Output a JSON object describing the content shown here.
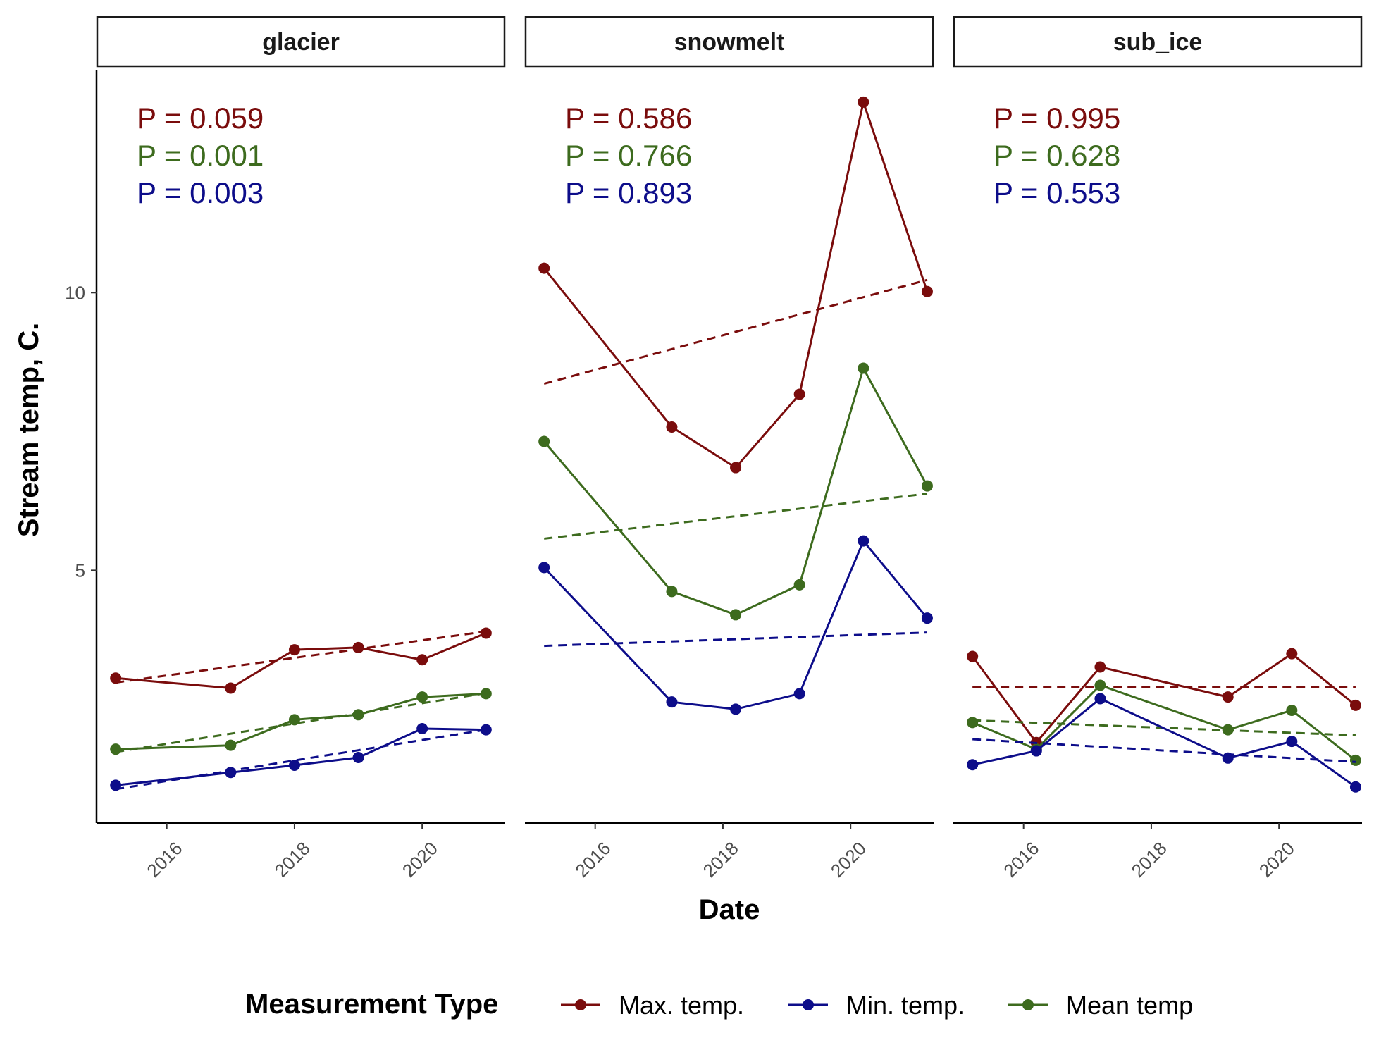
{
  "chart_data": {
    "type": "line",
    "ylabel": "Stream temp, C.",
    "xlabel": "Date",
    "legend": {
      "title": "Measurement Type",
      "placement": "bottom",
      "items": [
        {
          "key": "max",
          "label": "Max. temp.",
          "color": "#7a0c0c"
        },
        {
          "key": "min",
          "label": "Min. temp.",
          "color": "#0d0d8a"
        },
        {
          "key": "mean",
          "label": "Mean temp",
          "color": "#3d6b1e"
        }
      ]
    },
    "x_range": [
      2014.9,
      2021.3
    ],
    "x_ticks": [
      2016,
      2018,
      2020
    ],
    "x_tick_labels": [
      "2016",
      "2018",
      "2020"
    ],
    "y_range": [
      0.45,
      14.0
    ],
    "y_ticks": [
      5,
      10
    ],
    "y_tick_labels": [
      "5",
      "10"
    ],
    "grid": false,
    "trend_line_style": "dashed",
    "panels": [
      {
        "name": "glacier",
        "pvalues": [
          {
            "key": "max",
            "text": "P = 0.059"
          },
          {
            "key": "mean",
            "text": "P = 0.001"
          },
          {
            "key": "min",
            "text": "P = 0.003"
          }
        ],
        "series": [
          {
            "key": "max",
            "x": [
              2015.2,
              2017.0,
              2018.0,
              2019.0,
              2020.0,
              2021.0
            ],
            "values": [
              3.06,
              2.88,
              3.57,
              3.61,
              3.39,
              3.87
            ],
            "trend": [
              2.98,
              3.9
            ]
          },
          {
            "key": "mean",
            "x": [
              2015.2,
              2017.0,
              2018.0,
              2019.0,
              2020.0,
              2021.0
            ],
            "values": [
              1.78,
              1.85,
              2.31,
              2.4,
              2.72,
              2.78
            ],
            "trend": [
              1.73,
              2.79
            ]
          },
          {
            "key": "min",
            "x": [
              2015.2,
              2017.0,
              2018.0,
              2019.0,
              2020.0,
              2021.0
            ],
            "values": [
              1.13,
              1.36,
              1.49,
              1.63,
              2.15,
              2.13
            ],
            "trend": [
              1.06,
              2.13
            ]
          }
        ]
      },
      {
        "name": "snowmelt",
        "pvalues": [
          {
            "key": "max",
            "text": "P = 0.586"
          },
          {
            "key": "mean",
            "text": "P = 0.766"
          },
          {
            "key": "min",
            "text": "P = 0.893"
          }
        ],
        "series": [
          {
            "key": "max",
            "x": [
              2015.2,
              2017.2,
              2018.2,
              2019.2,
              2020.2,
              2021.2
            ],
            "values": [
              10.44,
              7.58,
              6.85,
              8.17,
              13.43,
              10.02
            ],
            "trend": [
              8.36,
              10.23
            ]
          },
          {
            "key": "mean",
            "x": [
              2015.2,
              2017.2,
              2018.2,
              2019.2,
              2020.2,
              2021.2
            ],
            "values": [
              7.32,
              4.62,
              4.2,
              4.74,
              8.64,
              6.52
            ],
            "trend": [
              5.57,
              6.38
            ]
          },
          {
            "key": "min",
            "x": [
              2015.2,
              2017.2,
              2018.2,
              2019.2,
              2020.2,
              2021.2
            ],
            "values": [
              5.05,
              2.63,
              2.5,
              2.78,
              5.53,
              4.14
            ],
            "trend": [
              3.64,
              3.88
            ]
          }
        ]
      },
      {
        "name": "sub_ice",
        "pvalues": [
          {
            "key": "max",
            "text": "P = 0.995"
          },
          {
            "key": "mean",
            "text": "P = 0.628"
          },
          {
            "key": "min",
            "text": "P = 0.553"
          }
        ],
        "series": [
          {
            "key": "max",
            "x": [
              2015.2,
              2016.2,
              2017.2,
              2019.2,
              2020.2,
              2021.2
            ],
            "values": [
              3.45,
              1.9,
              3.26,
              2.72,
              3.5,
              2.57
            ],
            "trend": [
              2.9,
              2.9
            ]
          },
          {
            "key": "mean",
            "x": [
              2015.2,
              2016.2,
              2017.2,
              2019.2,
              2020.2,
              2021.2
            ],
            "values": [
              2.26,
              1.78,
              2.93,
              2.13,
              2.48,
              1.58
            ],
            "trend": [
              2.3,
              2.03
            ]
          },
          {
            "key": "min",
            "x": [
              2015.2,
              2016.2,
              2017.2,
              2019.2,
              2020.2,
              2021.2
            ],
            "values": [
              1.5,
              1.75,
              2.69,
              1.62,
              1.92,
              1.1
            ],
            "trend": [
              1.96,
              1.55
            ]
          }
        ]
      }
    ]
  }
}
